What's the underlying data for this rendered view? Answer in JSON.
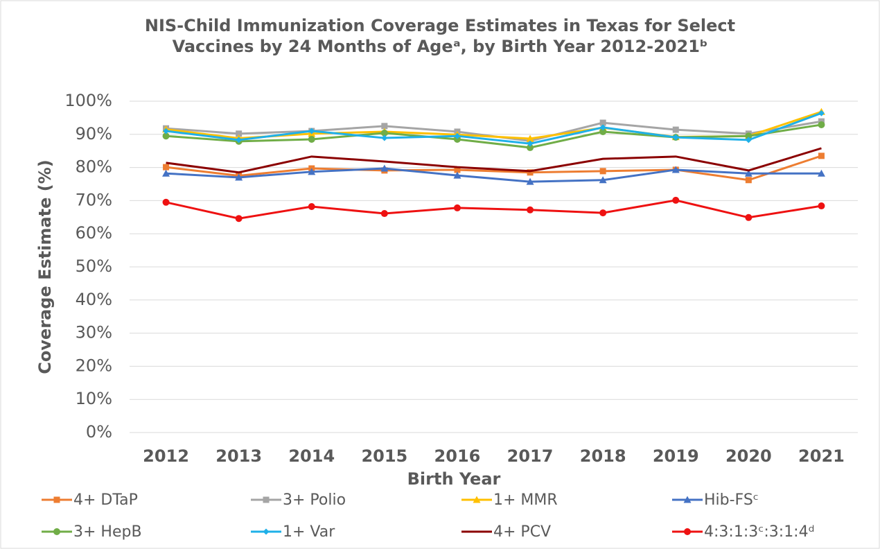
{
  "chart_data": {
    "type": "line",
    "title": "NIS-Child Immunization Coverage Estimates in Texas for Select Vaccines by 24 Months of Ageᵃ, by Birth Year 2012-2021ᵇ",
    "xlabel": "Birth Year",
    "ylabel": "Coverage Estimate (%)",
    "categories": [
      "2012",
      "2013",
      "2014",
      "2015",
      "2016",
      "2017",
      "2018",
      "2019",
      "2020",
      "2021"
    ],
    "ylim": [
      0,
      100
    ],
    "yticks": [
      {
        "value": 0,
        "label": "0%"
      },
      {
        "value": 10,
        "label": "10%"
      },
      {
        "value": 20,
        "label": "20%"
      },
      {
        "value": 30,
        "label": "30%"
      },
      {
        "value": 40,
        "label": "40%"
      },
      {
        "value": 50,
        "label": "50%"
      },
      {
        "value": 60,
        "label": "60%"
      },
      {
        "value": 70,
        "label": "70%"
      },
      {
        "value": 80,
        "label": "80%"
      },
      {
        "value": 90,
        "label": "90%"
      },
      {
        "value": 100,
        "label": "100%"
      }
    ],
    "grid": true,
    "legend": "bottom",
    "series": [
      {
        "name": "4+ DTaP",
        "color": "#ed7d31",
        "marker": "square",
        "values": [
          80.1,
          77.5,
          79.7,
          79.1,
          79.3,
          78.5,
          78.9,
          79.3,
          76.2,
          83.5
        ]
      },
      {
        "name": "3+ Polio",
        "color": "#a5a5a5",
        "marker": "square",
        "values": [
          91.8,
          90.2,
          91.0,
          92.5,
          90.8,
          88.0,
          93.5,
          91.4,
          90.2,
          93.9
        ]
      },
      {
        "name": "1+ MMR",
        "color": "#ffc000",
        "marker": "triangle",
        "values": [
          91.5,
          88.8,
          90.2,
          90.8,
          89.9,
          88.7,
          92.0,
          89.2,
          89.5,
          96.8
        ]
      },
      {
        "name": "Hib-FSᶜ",
        "color": "#4472c4",
        "marker": "triangle",
        "values": [
          78.2,
          77.0,
          78.7,
          79.7,
          77.6,
          75.7,
          76.2,
          79.3,
          78.2,
          78.2
        ]
      },
      {
        "name": "3+ HepB",
        "color": "#70ad47",
        "marker": "circle",
        "values": [
          89.5,
          87.9,
          88.5,
          90.4,
          88.5,
          86.0,
          90.8,
          89.1,
          89.5,
          92.9
        ]
      },
      {
        "name": "1+ Var",
        "color": "#1fb0e8",
        "marker": "diamond",
        "values": [
          91.0,
          88.3,
          91.0,
          88.9,
          89.5,
          87.2,
          92.1,
          89.1,
          88.3,
          96.4
        ]
      },
      {
        "name": "4+ PCV",
        "color": "#8b0000",
        "marker": "none",
        "values": [
          81.4,
          78.5,
          83.3,
          81.8,
          80.1,
          78.9,
          82.6,
          83.3,
          79.1,
          85.8
        ]
      },
      {
        "name": "4:3:1:3ᶜ:3:1:4ᵈ",
        "color": "#ee1111",
        "marker": "circle",
        "values": [
          69.5,
          64.6,
          68.2,
          66.1,
          67.8,
          67.2,
          66.3,
          70.1,
          64.9,
          68.4
        ]
      }
    ]
  }
}
